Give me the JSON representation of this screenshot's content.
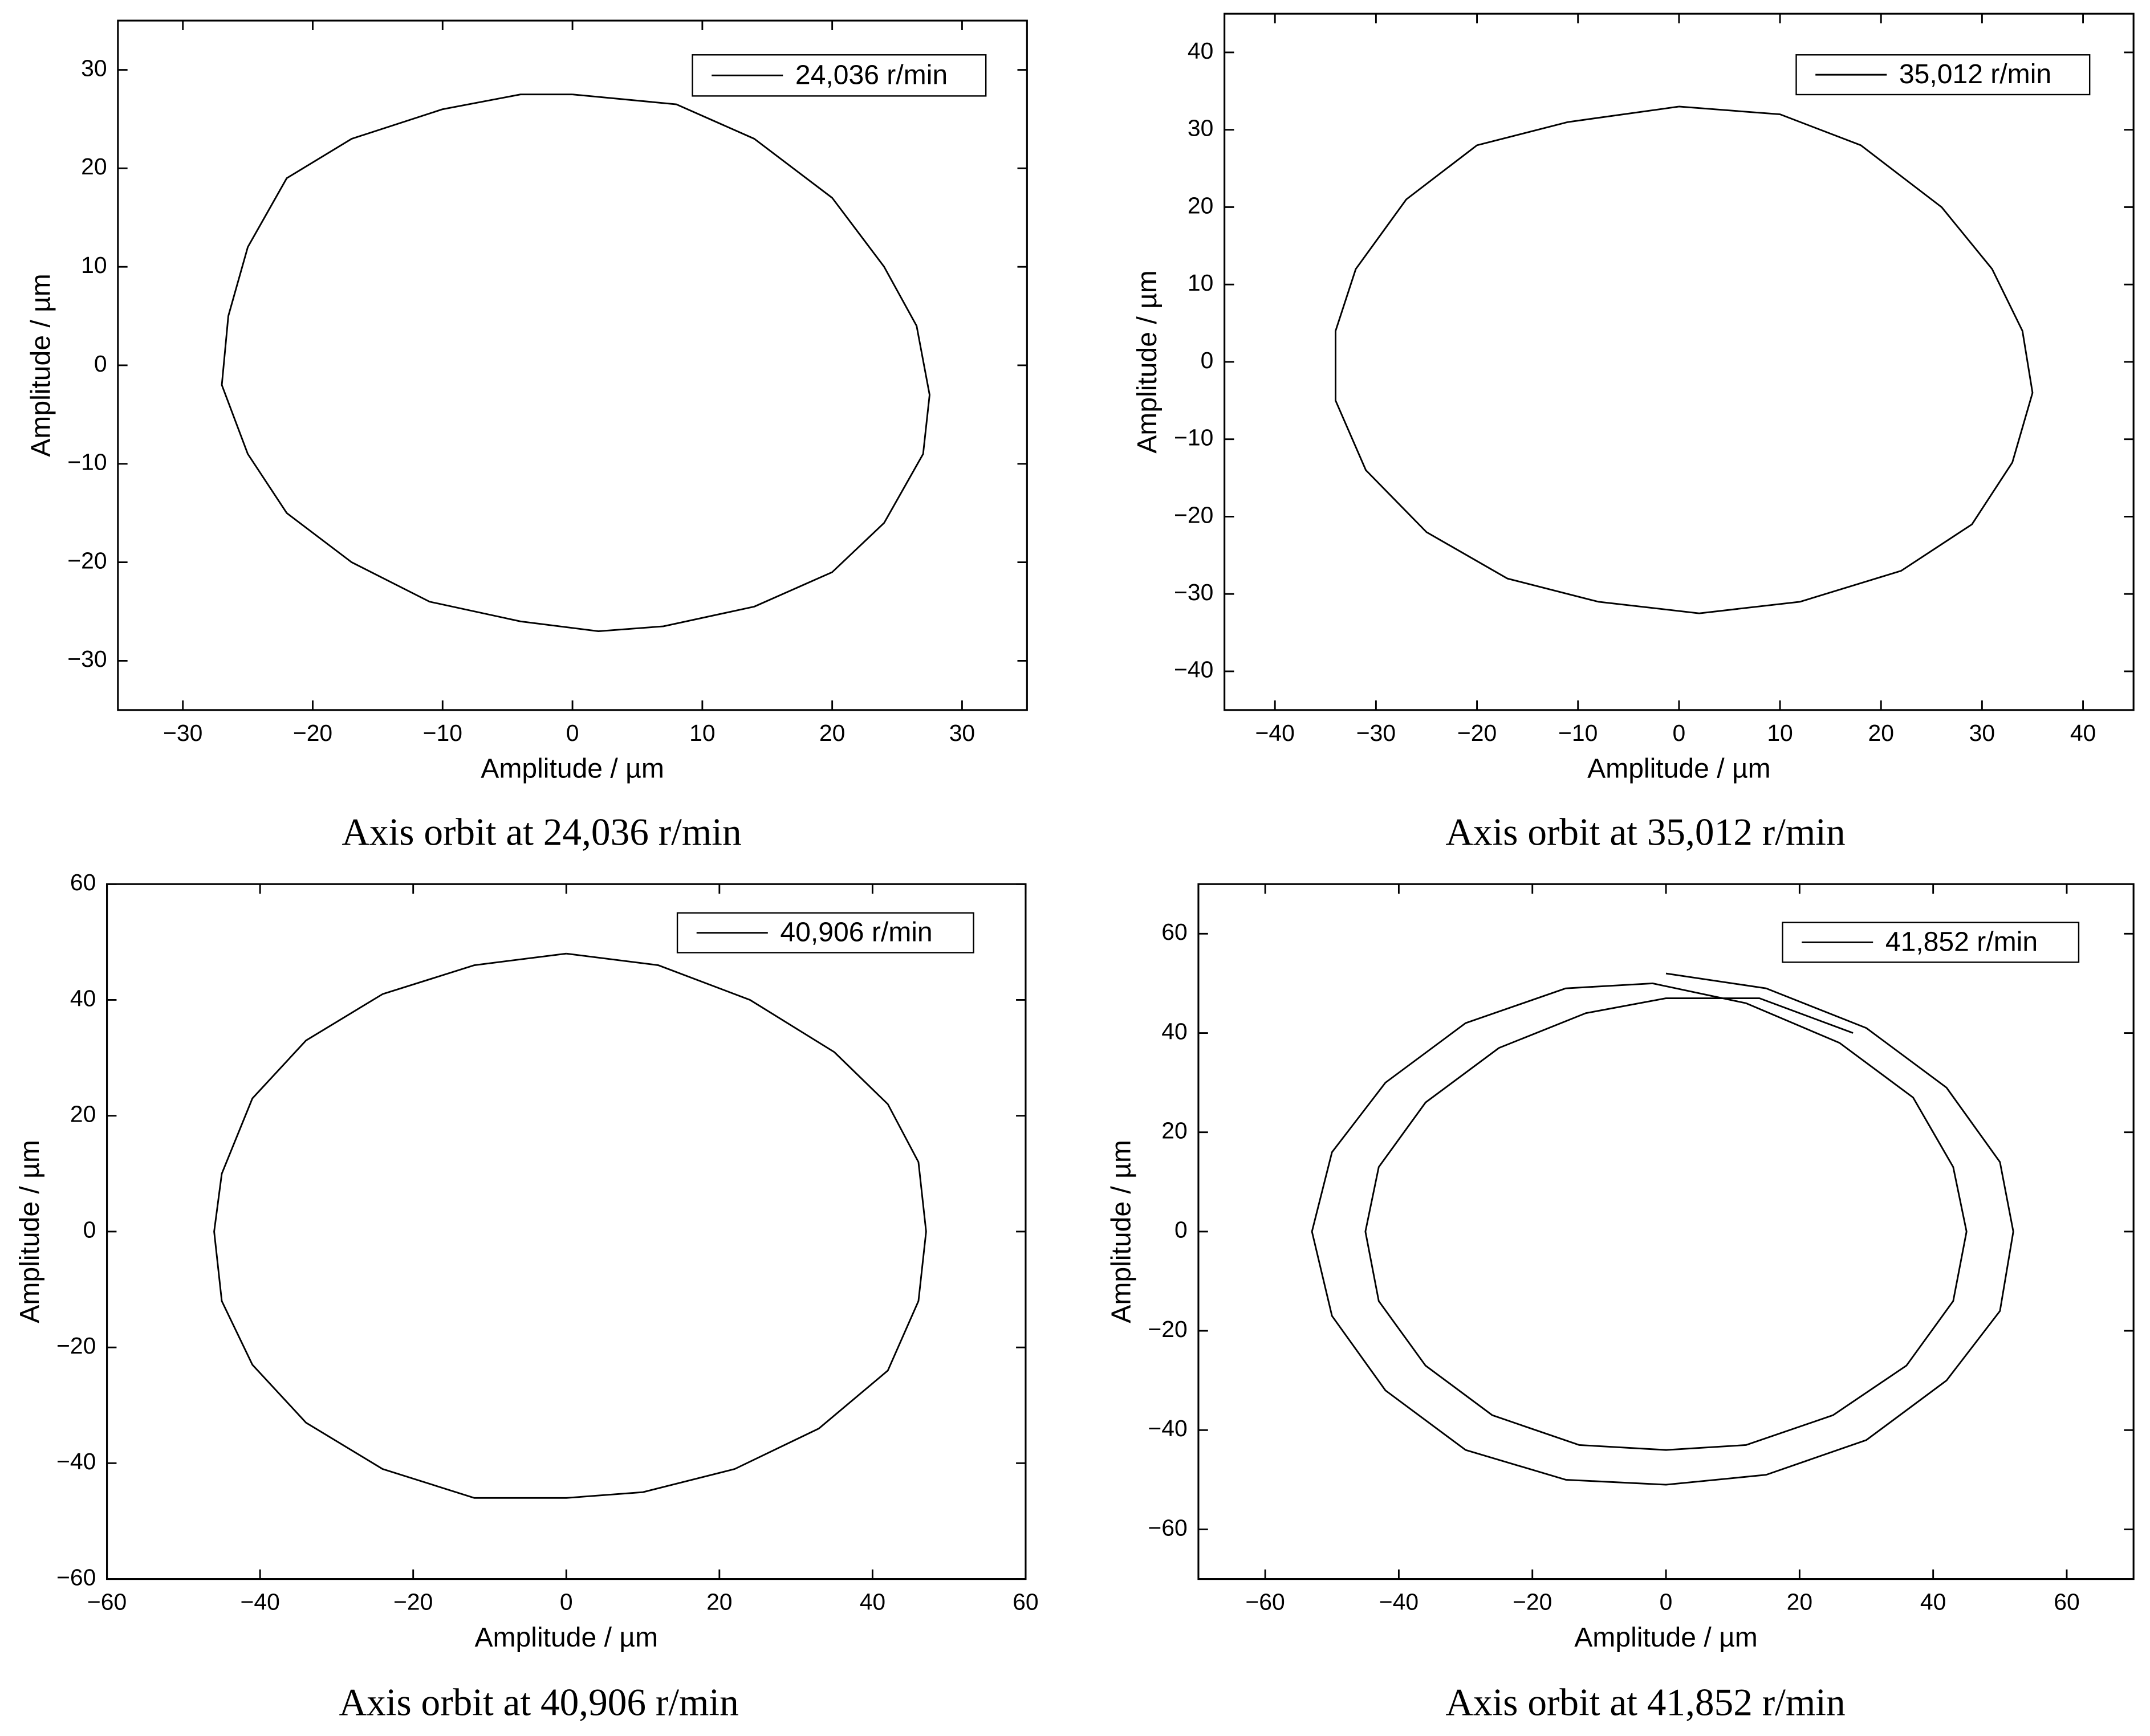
{
  "chart_data": [
    {
      "type": "line",
      "caption": "Axis orbit at 24,036 r/min",
      "xlabel": "Amplitude / µm",
      "ylabel": "Amplitude / µm",
      "xlim": [
        -35,
        35
      ],
      "ylim": [
        -35,
        35
      ],
      "xticks": [
        {
          "value": -30,
          "label": "−30"
        },
        {
          "value": -20,
          "label": "−20"
        },
        {
          "value": -10,
          "label": "−10"
        },
        0,
        10,
        20,
        30
      ],
      "yticks": [
        {
          "value": -30,
          "label": "−30"
        },
        {
          "value": -20,
          "label": "−20"
        },
        {
          "value": -10,
          "label": "−10"
        },
        0,
        10,
        20,
        30
      ],
      "legend": "upper right",
      "x": [
        0,
        8,
        14,
        20,
        24,
        26.5,
        27.5,
        27,
        24,
        20,
        14,
        7,
        2,
        -4,
        -11,
        -17,
        -22,
        -25,
        -27,
        -26.5,
        -25,
        -22,
        -17,
        -10,
        -4,
        0
      ],
      "series": [
        {
          "name": "24,036 r/min",
          "color": "#000000",
          "values": [
            27.5,
            26.5,
            23,
            17,
            10,
            4,
            -3,
            -9,
            -16,
            -21,
            -24.5,
            -26.5,
            -27,
            -26,
            -24,
            -20,
            -15,
            -9,
            -2,
            5,
            12,
            19,
            23,
            26,
            27.5,
            27.5
          ]
        }
      ]
    },
    {
      "type": "line",
      "caption": "Axis orbit at 35,012 r/min",
      "xlabel": "Amplitude / µm",
      "ylabel": "Amplitude / µm",
      "xlim": [
        -45,
        45
      ],
      "ylim": [
        -45,
        45
      ],
      "xticks": [
        {
          "value": -40,
          "label": "−40"
        },
        {
          "value": -30,
          "label": "−30"
        },
        {
          "value": -20,
          "label": "−20"
        },
        {
          "value": -10,
          "label": "−10"
        },
        0,
        10,
        20,
        30,
        40
      ],
      "yticks": [
        {
          "value": -40,
          "label": "−40"
        },
        {
          "value": -30,
          "label": "−30"
        },
        {
          "value": -20,
          "label": "−20"
        },
        {
          "value": -10,
          "label": "−10"
        },
        0,
        10,
        20,
        30,
        40
      ],
      "legend": "upper right",
      "x": [
        0,
        10,
        18,
        26,
        31,
        34,
        35,
        33,
        29,
        22,
        12,
        2,
        -8,
        -17,
        -25,
        -31,
        -34,
        -34,
        -32,
        -27,
        -20,
        -11,
        0
      ],
      "series": [
        {
          "name": "35,012 r/min",
          "color": "#000000",
          "values": [
            33,
            32,
            28,
            20,
            12,
            4,
            -4,
            -13,
            -21,
            -27,
            -31,
            -32.5,
            -31,
            -28,
            -22,
            -14,
            -5,
            4,
            12,
            21,
            28,
            31,
            33
          ]
        }
      ]
    },
    {
      "type": "line",
      "caption": "Axis orbit at 40,906 r/min",
      "xlabel": "Amplitude / µm",
      "ylabel": "Amplitude / µm",
      "xlim": [
        -60,
        60
      ],
      "ylim": [
        -60,
        60
      ],
      "xticks": [
        {
          "value": -60,
          "label": "−60"
        },
        {
          "value": -40,
          "label": "−40"
        },
        {
          "value": -20,
          "label": "−20"
        },
        0,
        20,
        40,
        60
      ],
      "yticks": [
        {
          "value": -60,
          "label": "−60"
        },
        {
          "value": -40,
          "label": "−40"
        },
        {
          "value": -20,
          "label": "−20"
        },
        0,
        20,
        40,
        60
      ],
      "legend": "upper right",
      "x": [
        0,
        12,
        24,
        35,
        42,
        46,
        47,
        46,
        42,
        33,
        22,
        10,
        0,
        -12,
        -24,
        -34,
        -41,
        -45,
        -46,
        -45,
        -41,
        -34,
        -24,
        -12,
        0
      ],
      "series": [
        {
          "name": "40,906 r/min",
          "color": "#000000",
          "values": [
            48,
            46,
            40,
            31,
            22,
            12,
            0,
            -12,
            -24,
            -34,
            -41,
            -45,
            -46,
            -46,
            -41,
            -33,
            -23,
            -12,
            0,
            10,
            23,
            33,
            41,
            46,
            48
          ]
        }
      ]
    },
    {
      "type": "line",
      "caption": "Axis orbit at 41,852 r/min",
      "xlabel": "Amplitude / µm",
      "ylabel": "Amplitude / µm",
      "xlim": [
        -70,
        70
      ],
      "ylim": [
        -70,
        70
      ],
      "xticks": [
        {
          "value": -60,
          "label": "−60"
        },
        {
          "value": -40,
          "label": "−40"
        },
        {
          "value": -20,
          "label": "−20"
        },
        0,
        20,
        40,
        60
      ],
      "yticks": [
        {
          "value": -60,
          "label": "−60"
        },
        {
          "value": -40,
          "label": "−40"
        },
        {
          "value": -20,
          "label": "−20"
        },
        0,
        20,
        40,
        60
      ],
      "legend": "upper right",
      "x": [
        0,
        15,
        30,
        42,
        50,
        52,
        50,
        42,
        30,
        15,
        0,
        -15,
        -30,
        -42,
        -50,
        -53,
        -50,
        -42,
        -30,
        -15,
        -2,
        12,
        26,
        37,
        43,
        45,
        43,
        36,
        25,
        12,
        0,
        -13,
        -26,
        -36,
        -43,
        -45,
        -43,
        -36,
        -25,
        -12,
        0,
        14,
        28
      ],
      "series": [
        {
          "name": "41,852 r/min",
          "color": "#000000",
          "values": [
            52,
            49,
            41,
            29,
            14,
            0,
            -16,
            -30,
            -42,
            -49,
            -51,
            -50,
            -44,
            -32,
            -17,
            0,
            16,
            30,
            42,
            49,
            50,
            46,
            38,
            27,
            13,
            0,
            -14,
            -27,
            -37,
            -43,
            -44,
            -43,
            -37,
            -27,
            -14,
            0,
            13,
            26,
            37,
            44,
            47,
            47,
            40
          ]
        }
      ]
    }
  ]
}
